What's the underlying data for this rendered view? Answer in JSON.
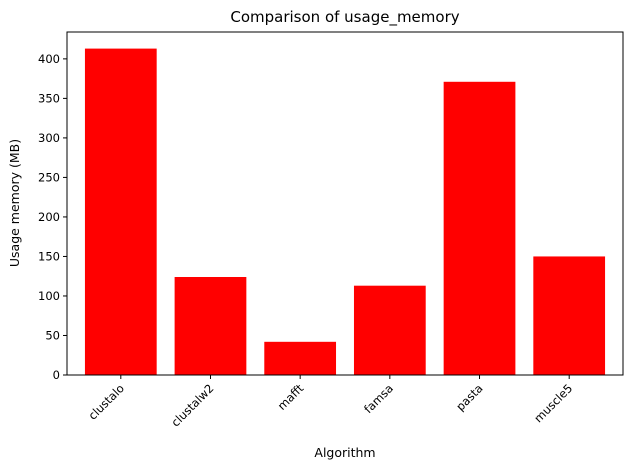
{
  "chart_data": {
    "type": "bar",
    "title": "Comparison of usage_memory",
    "xlabel": "Algorithm",
    "ylabel": "Usage memory (MB)",
    "categories": [
      "clustalo",
      "clustalw2",
      "mafft",
      "famsa",
      "pasta",
      "muscle5"
    ],
    "values": [
      413,
      124,
      42,
      113,
      371,
      150
    ],
    "ylim": [
      0,
      434
    ],
    "yticks": [
      0,
      50,
      100,
      150,
      200,
      250,
      300,
      350,
      400
    ],
    "bar_color": "#ff0000",
    "x_tick_rotation_deg": 45,
    "grid": false,
    "legend": "none"
  }
}
